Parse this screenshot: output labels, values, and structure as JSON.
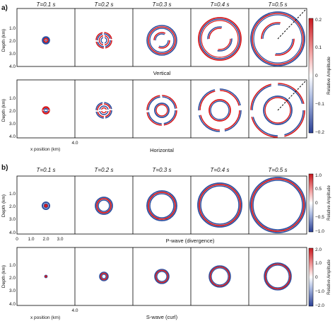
{
  "figure": {
    "part_a": {
      "label": "a)",
      "times": [
        "T=0.1 s",
        "T=0.2 s",
        "T=0.3 s",
        "T=0.4 s",
        "T=0.5 s"
      ],
      "rows": [
        {
          "title": "Vertical"
        },
        {
          "title": "Horizontal"
        }
      ],
      "colorbar": {
        "label": "Relative Amplitude",
        "ticks": [
          "0.2",
          "0.1",
          "0",
          "−0.1",
          "−0.2"
        ]
      }
    },
    "part_b": {
      "label": "b)",
      "times": [
        "T=0.1 s",
        "T=0.2 s",
        "T=0.3 s",
        "T=0.4 s",
        "T=0.5 s"
      ],
      "rows": [
        {
          "title": "P-wave (divergence)",
          "colorbar": {
            "label": "Relative Amplitude",
            "ticks": [
              "1.0",
              "0.5",
              "0",
              "−0.5",
              "−1.0"
            ]
          }
        },
        {
          "title": "S-wave (curl)",
          "colorbar": {
            "label": "Relative Amplitude",
            "ticks": [
              "2.0",
              "1.0",
              "0",
              "−1.0",
              "−2.0"
            ]
          }
        }
      ]
    },
    "axes": {
      "ylabel": "Depth (km)",
      "xlabel": "x position (km)",
      "y_ticks": [
        "1.0",
        "2.0",
        "3.0",
        "4.0"
      ],
      "x_ticks": [
        "0",
        "1.0",
        "2.0",
        "3.0",
        "4.0"
      ]
    },
    "colors": {
      "positive": "#d7191c",
      "negative": "#2c4fa0",
      "zero": "#ffffff"
    }
  }
}
